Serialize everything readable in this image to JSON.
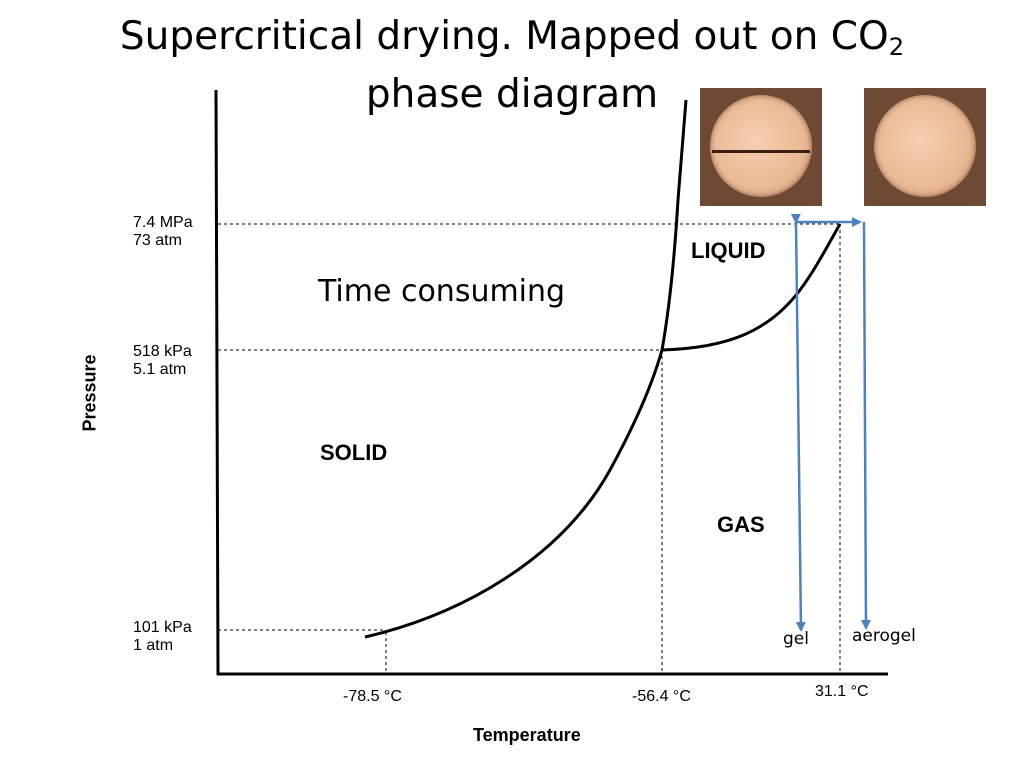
{
  "title": {
    "line1_before_sub": "Supercritical drying.  Mapped out on CO",
    "line1_sub": "2",
    "line2": "phase diagram"
  },
  "axes": {
    "y_title": "Pressure",
    "x_title": "Temperature"
  },
  "pressure_labels": [
    {
      "kpa": "7.4 MPa",
      "atm": "73 atm"
    },
    {
      "kpa": "518 kPa",
      "atm": "5.1 atm"
    },
    {
      "kpa": "101 kPa",
      "atm": "1 atm"
    }
  ],
  "temperature_labels": [
    "-78.5 °C",
    "-56.4 °C",
    "31.1 °C"
  ],
  "regions": {
    "liquid": "LIQUID",
    "solid": "SOLID",
    "gas": "GAS"
  },
  "annotation": "Time consuming",
  "path_labels": {
    "gel": "gel",
    "aerogel": "aerogel"
  },
  "colors": {
    "arrow": "#4f81bd",
    "line": "#000000"
  }
}
